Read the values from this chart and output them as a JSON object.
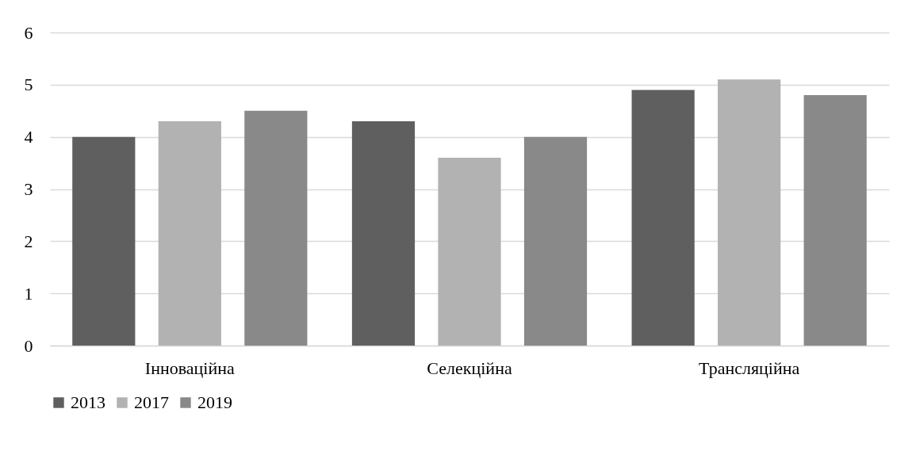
{
  "chart_data": {
    "type": "bar",
    "categories": [
      "Інноваційна",
      "Селекційна",
      "Трансляційна"
    ],
    "series": [
      {
        "name": "2013",
        "color": "#5f5f5f",
        "values": [
          4.0,
          4.3,
          4.9
        ]
      },
      {
        "name": "2017",
        "color": "#b2b2b2",
        "values": [
          4.3,
          3.6,
          5.1
        ]
      },
      {
        "name": "2019",
        "color": "#898989",
        "values": [
          4.5,
          4.0,
          4.8
        ]
      }
    ],
    "ylim": [
      0,
      6
    ],
    "yticks": [
      0,
      1,
      2,
      3,
      4,
      5,
      6
    ],
    "grid": "y",
    "legend": "bottom"
  }
}
